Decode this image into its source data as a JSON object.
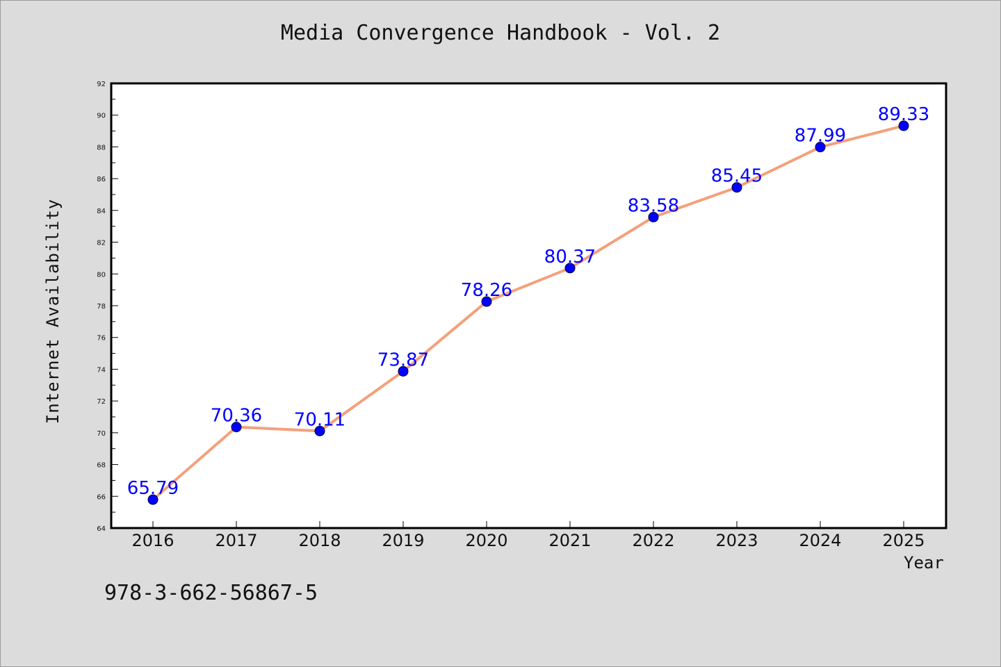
{
  "title": "Media Convergence Handbook - Vol. 2",
  "isbn": "978-3-662-56867-5",
  "colors": {
    "background": "#dcdcdc",
    "plot_background": "#ffffff",
    "line": "#f4a07c",
    "marker": "#0000ff",
    "data_label": "#0000ff"
  },
  "chart_data": {
    "type": "line",
    "xlabel": "Year",
    "ylabel": "Internet Availability",
    "categories": [
      "2016",
      "2017",
      "2018",
      "2019",
      "2020",
      "2021",
      "2022",
      "2023",
      "2024",
      "2025"
    ],
    "series": [
      {
        "values": [
          65.79,
          70.36,
          70.11,
          73.87,
          78.26,
          80.37,
          83.58,
          85.45,
          87.99,
          89.33
        ]
      }
    ],
    "data_labels": [
      "65.79",
      "70.36",
      "70.11",
      "73.87",
      "78.26",
      "80.37",
      "83.58",
      "85.45",
      "87.99",
      "89.33"
    ],
    "ylim": [
      64,
      92
    ],
    "yticks": [
      64,
      66,
      68,
      70,
      72,
      74,
      76,
      78,
      80,
      82,
      84,
      86,
      88,
      90,
      92
    ],
    "grid": false,
    "legend": "none"
  }
}
